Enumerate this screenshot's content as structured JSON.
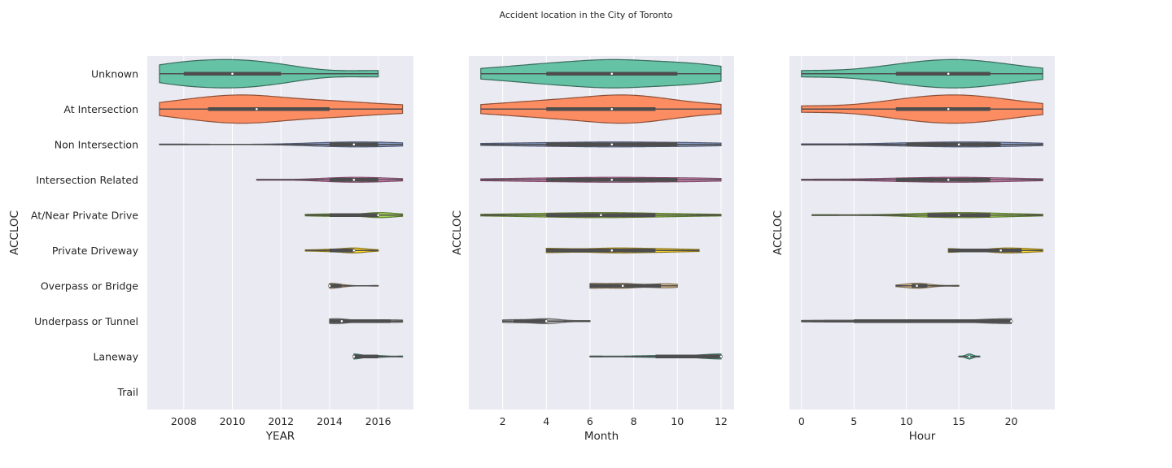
{
  "figure": {
    "title": "Accident location in the City of Toronto"
  },
  "palette": [
    "#66c2a5",
    "#fc8d62",
    "#8da0cb",
    "#e78ac3",
    "#a6d854",
    "#ffd92f",
    "#e5c494",
    "#b3b3b3",
    "#66c2a5",
    "#fc8d62"
  ],
  "chart_data": [
    {
      "type": "violin",
      "orientation": "horizontal",
      "xlabel": "YEAR",
      "ylabel": "ACCLOC",
      "categories": [
        "Unknown",
        "At Intersection",
        "Non Intersection",
        "Intersection Related",
        "At/Near Private Drive",
        "Private Driveway",
        "Overpass or Bridge",
        "Underpass or Tunnel",
        "Laneway",
        "Trail"
      ],
      "xlim": [
        2006.5,
        2017.45
      ],
      "xticks": [
        2008,
        2010,
        2012,
        2014,
        2016
      ],
      "grid": true,
      "groups": [
        {
          "category": "Unknown",
          "min": 2007,
          "q1": 2008,
          "median": 2010,
          "q3": 2012,
          "max": 2016
        },
        {
          "category": "At Intersection",
          "min": 2007,
          "q1": 2009,
          "median": 2011,
          "q3": 2014,
          "max": 2017
        },
        {
          "category": "Non Intersection",
          "min": 2007,
          "q1": 2014,
          "median": 2015,
          "q3": 2016,
          "max": 2017
        },
        {
          "category": "Intersection Related",
          "min": 2011,
          "q1": 2014,
          "median": 2015,
          "q3": 2016,
          "max": 2017
        },
        {
          "category": "At/Near Private Drive",
          "min": 2013,
          "q1": 2014,
          "median": 2016,
          "q3": 2016,
          "max": 2017
        },
        {
          "category": "Private Driveway",
          "min": 2013,
          "q1": 2014,
          "median": 2015,
          "q3": 2015,
          "max": 2016
        },
        {
          "category": "Overpass or Bridge",
          "min": 2014,
          "q1": 2014,
          "median": 2014,
          "q3": 2014.5,
          "max": 2016
        },
        {
          "category": "Underpass or Tunnel",
          "min": 2014,
          "q1": 2014,
          "median": 2014.5,
          "q3": 2016.5,
          "max": 2017
        },
        {
          "category": "Laneway",
          "min": 2015,
          "q1": 2015,
          "median": 2015,
          "q3": 2016,
          "max": 2017
        },
        {
          "category": "Trail"
        }
      ]
    },
    {
      "type": "violin",
      "orientation": "horizontal",
      "xlabel": "Month",
      "ylabel": "ACCLOC",
      "categories": [
        "Unknown",
        "At Intersection",
        "Non Intersection",
        "Intersection Related",
        "At/Near Private Drive",
        "Private Driveway",
        "Overpass or Bridge",
        "Underpass or Tunnel",
        "Laneway",
        "Trail"
      ],
      "xlim": [
        0.45,
        12.6
      ],
      "xticks": [
        2,
        4,
        6,
        8,
        10,
        12
      ],
      "grid": true,
      "groups": [
        {
          "category": "Unknown",
          "min": 1,
          "q1": 4,
          "median": 7,
          "q3": 10,
          "max": 12
        },
        {
          "category": "At Intersection",
          "min": 1,
          "q1": 4,
          "median": 7,
          "q3": 9,
          "max": 12
        },
        {
          "category": "Non Intersection",
          "min": 1,
          "q1": 4,
          "median": 7,
          "q3": 10,
          "max": 12
        },
        {
          "category": "Intersection Related",
          "min": 1,
          "q1": 4,
          "median": 7,
          "q3": 10,
          "max": 12
        },
        {
          "category": "At/Near Private Drive",
          "min": 1,
          "q1": 4,
          "median": 6.5,
          "q3": 9,
          "max": 12
        },
        {
          "category": "Private Driveway",
          "min": 4,
          "q1": 4,
          "median": 7,
          "q3": 9,
          "max": 11
        },
        {
          "category": "Overpass or Bridge",
          "min": 6,
          "q1": 6,
          "median": 7.5,
          "q3": 9.25,
          "max": 10
        },
        {
          "category": "Underpass or Tunnel",
          "min": 2,
          "q1": 2.5,
          "median": 4,
          "q3": 4,
          "max": 6
        },
        {
          "category": "Laneway",
          "min": 6,
          "q1": 9,
          "median": 12,
          "q3": 12,
          "max": 12
        },
        {
          "category": "Trail"
        }
      ]
    },
    {
      "type": "violin",
      "orientation": "horizontal",
      "xlabel": "Hour",
      "ylabel": "ACCLOC",
      "categories": [
        "Unknown",
        "At Intersection",
        "Non Intersection",
        "Intersection Related",
        "At/Near Private Drive",
        "Private Driveway",
        "Overpass or Bridge",
        "Underpass or Tunnel",
        "Laneway",
        "Trail"
      ],
      "xlim": [
        -1.15,
        24.15
      ],
      "xticks": [
        0,
        5,
        10,
        15,
        20
      ],
      "grid": true,
      "groups": [
        {
          "category": "Unknown",
          "min": 0,
          "q1": 9,
          "median": 14,
          "q3": 18,
          "max": 23
        },
        {
          "category": "At Intersection",
          "min": 0,
          "q1": 9,
          "median": 14,
          "q3": 18,
          "max": 23
        },
        {
          "category": "Non Intersection",
          "min": 0,
          "q1": 10,
          "median": 15,
          "q3": 19,
          "max": 23
        },
        {
          "category": "Intersection Related",
          "min": 0,
          "q1": 9,
          "median": 14,
          "q3": 18,
          "max": 23
        },
        {
          "category": "At/Near Private Drive",
          "min": 1,
          "q1": 12,
          "median": 15,
          "q3": 18,
          "max": 23
        },
        {
          "category": "Private Driveway",
          "min": 14,
          "q1": 14,
          "median": 19,
          "q3": 21,
          "max": 23
        },
        {
          "category": "Overpass or Bridge",
          "min": 9,
          "q1": 10.5,
          "median": 11,
          "q3": 12,
          "max": 15
        },
        {
          "category": "Underpass or Tunnel",
          "min": 0,
          "q1": 5,
          "median": 20,
          "q3": 20,
          "max": 20
        },
        {
          "category": "Laneway",
          "min": 15,
          "q1": 16,
          "median": 16,
          "q3": 16,
          "max": 17
        },
        {
          "category": "Trail"
        }
      ]
    }
  ]
}
